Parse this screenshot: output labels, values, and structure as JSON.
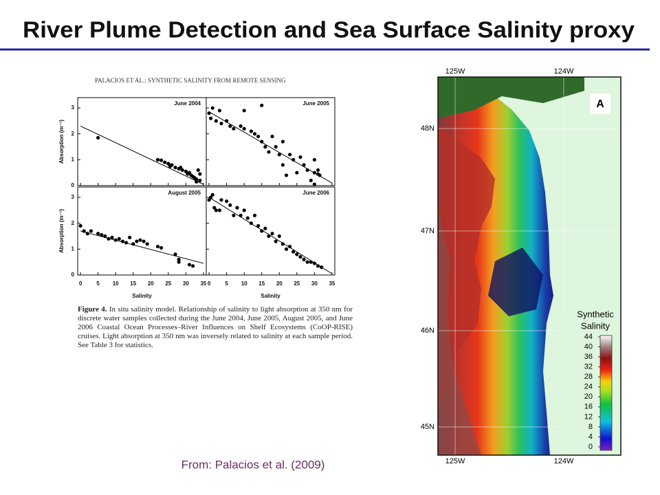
{
  "title": "River Plume Detection and Sea Surface Salinity proxy",
  "figure_header": "PALACIOS ET AL.: SYNTHETIC SALINITY FROM REMOTE SENSING",
  "caption_label": "Figure 4.",
  "caption_text": "In situ salinity model. Relationship of salinity to light absorption at 350 nm for discrete water samples collected during the June 2004, June 2005, August 2005, and June 2006 Coastal Ocean Processes–River Influences on Shelf Ecosystems (CoOP-RISE) cruises. Light absorption at 350 nm was inversely related to salinity at each sample period. See Table 3 for statistics.",
  "source": "From: Palacios et al. (2009)",
  "chart_data": [
    {
      "type": "scatter",
      "title": "June 2004",
      "ylabel": "Absorption (m⁻¹)",
      "x": [
        5,
        22,
        23,
        24,
        25,
        25.5,
        26,
        27,
        28,
        28.5,
        29,
        30,
        30.5,
        31,
        31.5,
        32,
        32.5,
        33,
        33.5,
        34,
        34,
        33
      ],
      "y": [
        1.85,
        1.0,
        0.98,
        0.9,
        0.85,
        0.75,
        0.8,
        0.7,
        0.65,
        0.7,
        0.6,
        0.55,
        0.45,
        0.5,
        0.4,
        0.35,
        0.3,
        0.25,
        0.6,
        0.45,
        0.2,
        0.15
      ],
      "trend_line": {
        "x": [
          0,
          35
        ],
        "y": [
          2.3,
          0.05
        ]
      },
      "xlim": [
        -0.8,
        35.8
      ],
      "ylim": [
        0,
        3.4
      ],
      "xticks": [
        0,
        5,
        10,
        15,
        20,
        25,
        30,
        35
      ],
      "yticks": [
        0,
        1,
        2,
        3
      ]
    },
    {
      "type": "scatter",
      "title": "June 2005",
      "x": [
        0,
        1,
        0.5,
        2,
        3,
        3.5,
        5,
        6,
        7,
        9,
        10,
        10,
        12,
        13,
        14,
        15,
        15,
        16,
        17,
        18,
        19,
        20,
        21,
        21,
        22,
        23,
        24,
        25,
        26,
        27,
        28,
        29,
        30,
        30,
        31,
        31.5,
        31,
        30
      ],
      "y": [
        2.8,
        3.0,
        2.6,
        2.5,
        2.9,
        2.4,
        2.5,
        2.3,
        2.2,
        2.3,
        2.2,
        2.9,
        2.1,
        2.0,
        1.9,
        3.1,
        1.7,
        1.5,
        1.3,
        1.9,
        1.5,
        1.2,
        1.7,
        0.8,
        0.4,
        1.2,
        1.0,
        0.5,
        1.1,
        0.8,
        0.6,
        0.2,
        1.0,
        0.5,
        0.45,
        0.4,
        0.6,
        0.05
      ],
      "trend_line": {
        "x": [
          0,
          35
        ],
        "y": [
          2.85,
          0.1
        ]
      },
      "xlim": [
        -0.8,
        35.8
      ],
      "ylim": [
        0,
        3.4
      ],
      "xticks": [
        0,
        5,
        10,
        15,
        20,
        25,
        30,
        35
      ],
      "yticks": [
        0,
        1,
        2,
        3
      ]
    },
    {
      "type": "scatter",
      "title": "August 2005",
      "xlabel": "Salinity",
      "ylabel": "Absorption (m⁻¹)",
      "x": [
        0,
        1,
        2,
        3,
        5,
        6,
        7,
        8,
        9,
        10,
        11,
        12,
        13,
        14,
        15,
        16,
        17,
        18,
        19,
        22,
        23,
        27,
        28,
        28,
        31,
        32
      ],
      "y": [
        1.9,
        1.7,
        1.6,
        1.7,
        1.6,
        1.55,
        1.5,
        1.4,
        1.45,
        1.35,
        1.4,
        1.3,
        1.25,
        1.45,
        1.2,
        1.3,
        1.35,
        1.3,
        1.2,
        1.1,
        1.05,
        0.8,
        0.6,
        0.5,
        0.4,
        0.35
      ],
      "trend_line": {
        "x": [
          0,
          35
        ],
        "y": [
          1.7,
          0.45
        ]
      },
      "xlim": [
        -0.8,
        35.8
      ],
      "ylim": [
        0,
        3.4
      ],
      "xticks": [
        0,
        5,
        10,
        15,
        20,
        25,
        30,
        35
      ],
      "yticks": [
        0,
        1,
        2,
        3
      ]
    },
    {
      "type": "scatter",
      "title": "June 2006",
      "xlabel": "Salinity",
      "x": [
        0,
        0.5,
        1,
        1.5,
        2,
        3,
        3.5,
        5,
        6,
        7,
        8,
        9,
        10,
        11,
        12,
        13,
        14,
        15,
        16,
        17,
        18,
        19,
        20,
        21,
        22,
        23,
        24,
        25,
        26,
        27,
        28,
        29,
        30,
        31,
        32
      ],
      "y": [
        2.9,
        3.0,
        3.1,
        2.6,
        2.5,
        2.5,
        2.9,
        2.85,
        2.7,
        2.3,
        2.6,
        2.3,
        2.5,
        2.2,
        2.0,
        2.3,
        1.9,
        1.7,
        1.8,
        1.5,
        1.6,
        1.3,
        1.5,
        1.2,
        1.0,
        1.1,
        0.9,
        0.8,
        0.7,
        0.6,
        0.5,
        0.5,
        0.45,
        0.35,
        0.3
      ],
      "trend_line": {
        "x": [
          0,
          35
        ],
        "y": [
          3.0,
          0.05
        ]
      },
      "xlim": [
        -0.8,
        35.8
      ],
      "ylim": [
        0,
        3.4
      ],
      "xticks": [
        0,
        5,
        10,
        15,
        20,
        25,
        30,
        35
      ],
      "yticks": [
        0,
        1,
        2,
        3
      ]
    }
  ],
  "map": {
    "panel_label": "A",
    "lon_labels": [
      "125W",
      "124W"
    ],
    "lat_labels": [
      "48N",
      "47N",
      "46N",
      "45N"
    ],
    "colorbar": {
      "title_lines": [
        "Synthetic",
        "Salinity"
      ],
      "lim": [
        0,
        44
      ],
      "ticks": [
        44,
        40,
        36,
        32,
        28,
        24,
        20,
        16,
        12,
        8,
        4,
        0
      ]
    }
  }
}
